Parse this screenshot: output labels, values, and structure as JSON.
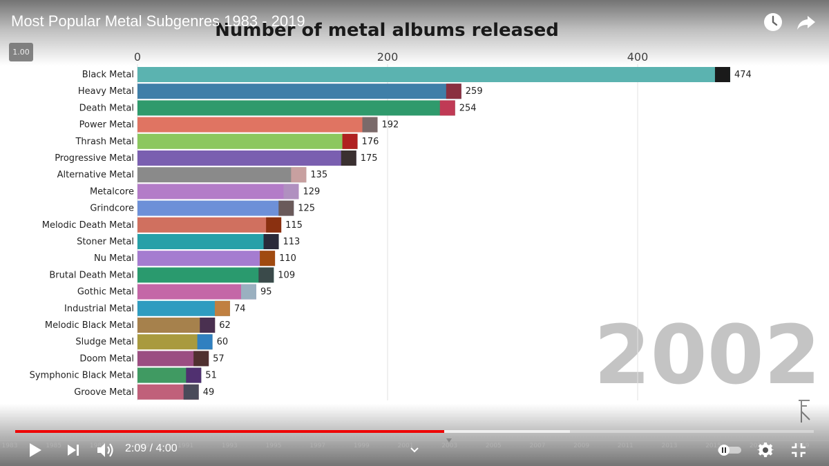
{
  "video": {
    "title": "Most Popular Metal Subgenres 1983 - 2019",
    "speed_badge": "1.00",
    "current_time": "2:09",
    "time_separator": " / ",
    "duration": "4:00",
    "played_fraction": 0.5375,
    "buffered_fraction": 0.695
  },
  "icons": {
    "watch_later": "clock-icon",
    "share": "share-arrow-icon",
    "play": "play-icon",
    "next": "skip-next-icon",
    "volume": "volume-icon",
    "chapter": "chevron-down-icon",
    "autoplay": "autoplay-toggle-icon",
    "settings": "gear-icon",
    "exit_fullscreen": "exit-fullscreen-icon",
    "watermark": "channel-logo-icon"
  },
  "timeline_years": [
    "1983",
    "1985",
    "1987",
    "1989",
    "1991",
    "1993",
    "1995",
    "1997",
    "1999",
    "2001",
    "2003",
    "2005",
    "2007",
    "2009",
    "2011",
    "2013",
    "2015",
    "2017",
    "2019"
  ],
  "chart_data": {
    "type": "bar",
    "orientation": "horizontal",
    "title": "Number of metal albums released",
    "year_label": "2002",
    "xlim": [
      0,
      480
    ],
    "x_ticks": [
      0,
      200,
      400
    ],
    "grid": true,
    "categories": [
      "Black Metal",
      "Heavy Metal",
      "Death Metal",
      "Power Metal",
      "Thrash Metal",
      "Progressive Metal",
      "Alternative Metal",
      "Metalcore",
      "Grindcore",
      "Melodic Death Metal",
      "Stoner Metal",
      "Nu Metal",
      "Brutal Death Metal",
      "Gothic Metal",
      "Industrial Metal",
      "Melodic Black Metal",
      "Sludge Metal",
      "Doom Metal",
      "Symphonic Black Metal",
      "Groove Metal"
    ],
    "values": [
      474,
      259,
      254,
      192,
      176,
      175,
      135,
      129,
      125,
      115,
      113,
      110,
      109,
      95,
      74,
      62,
      60,
      57,
      51,
      49
    ],
    "colors": [
      "#5bb3b0",
      "#3f7fa8",
      "#2f9a6c",
      "#e07462",
      "#8cc75e",
      "#7a5fb0",
      "#8a8a8a",
      "#b37cc8",
      "#6d90d8",
      "#d0705f",
      "#27a0a8",
      "#a57cd0",
      "#2a9a6e",
      "#c467a7",
      "#2f9cc0",
      "#a6814c",
      "#a99a3e",
      "#9b4e82",
      "#409a62",
      "#c0607a"
    ],
    "thumb_colors": [
      "#1a1a1a",
      "#8a3040",
      "#c03a55",
      "#7a6a6a",
      "#b02020",
      "#3a3030",
      "#c8a0a0",
      "#b090c0",
      "#6a5a5a",
      "#8a3010",
      "#2a2a3a",
      "#a04a10",
      "#3a4a4a",
      "#9ab0c0",
      "#c08040",
      "#4a3050",
      "#3080c0",
      "#503030",
      "#503070",
      "#4a4a5a"
    ]
  }
}
